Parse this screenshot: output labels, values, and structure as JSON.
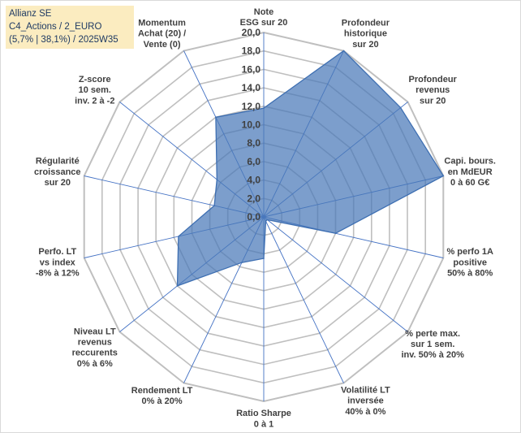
{
  "header": {
    "line1": "Allianz SE",
    "line2": "C4_Actions / 2_EURO",
    "line3": "(5,7% | 38,1%) / 2025W35"
  },
  "colors": {
    "fill": "#4a78b8",
    "stroke": "#3e6fb2",
    "grid": "#bfbfbf",
    "spoke": "#4472c4"
  },
  "chart_data": {
    "type": "radar",
    "title": "",
    "rmin": 0,
    "rmax": 20,
    "step": 2,
    "tick_labels": [
      "0,0",
      "2,0",
      "4,0",
      "6,0",
      "8,0",
      "10,0",
      "12,0",
      "14,0",
      "16,0",
      "18,0",
      "20,0"
    ],
    "categories": [
      [
        "Note",
        "ESG sur 20"
      ],
      [
        "Profondeur",
        "historique",
        "sur 20"
      ],
      [
        "Profondeur",
        "revenus",
        "sur 20"
      ],
      [
        "Capi. bours.",
        "en MdEUR",
        "0 à 60 G€"
      ],
      [
        "% perfo 1A",
        "positive",
        "50% à 80%"
      ],
      [
        "% perte max.",
        "sur 1 sem.",
        "inv. 50% à 20%"
      ],
      [
        "Volatilité LT",
        "inversée",
        "40% à 0%"
      ],
      [
        "Ratio Sharpe",
        "0 à 1"
      ],
      [
        "Rendement LT",
        "0% à 20%"
      ],
      [
        "Niveau LT",
        "revenus",
        "reccurents",
        "0% à 6%"
      ],
      [
        "Perfo. LT",
        "vs index",
        "-8% à 12%"
      ],
      [
        "Régularité",
        "croissance",
        "sur 20"
      ],
      [
        "Z-score",
        "10 sem.",
        "inv. 2 à -2"
      ],
      [
        "Momentum",
        "Achat (20) /",
        "Vente (0)"
      ]
    ],
    "series": [
      {
        "values": [
          11.8,
          20.0,
          19.0,
          20.0,
          8.0,
          0.5,
          0.5,
          4.5,
          5.5,
          12.0,
          9.5,
          5.5,
          6.5,
          12.0
        ]
      }
    ]
  }
}
